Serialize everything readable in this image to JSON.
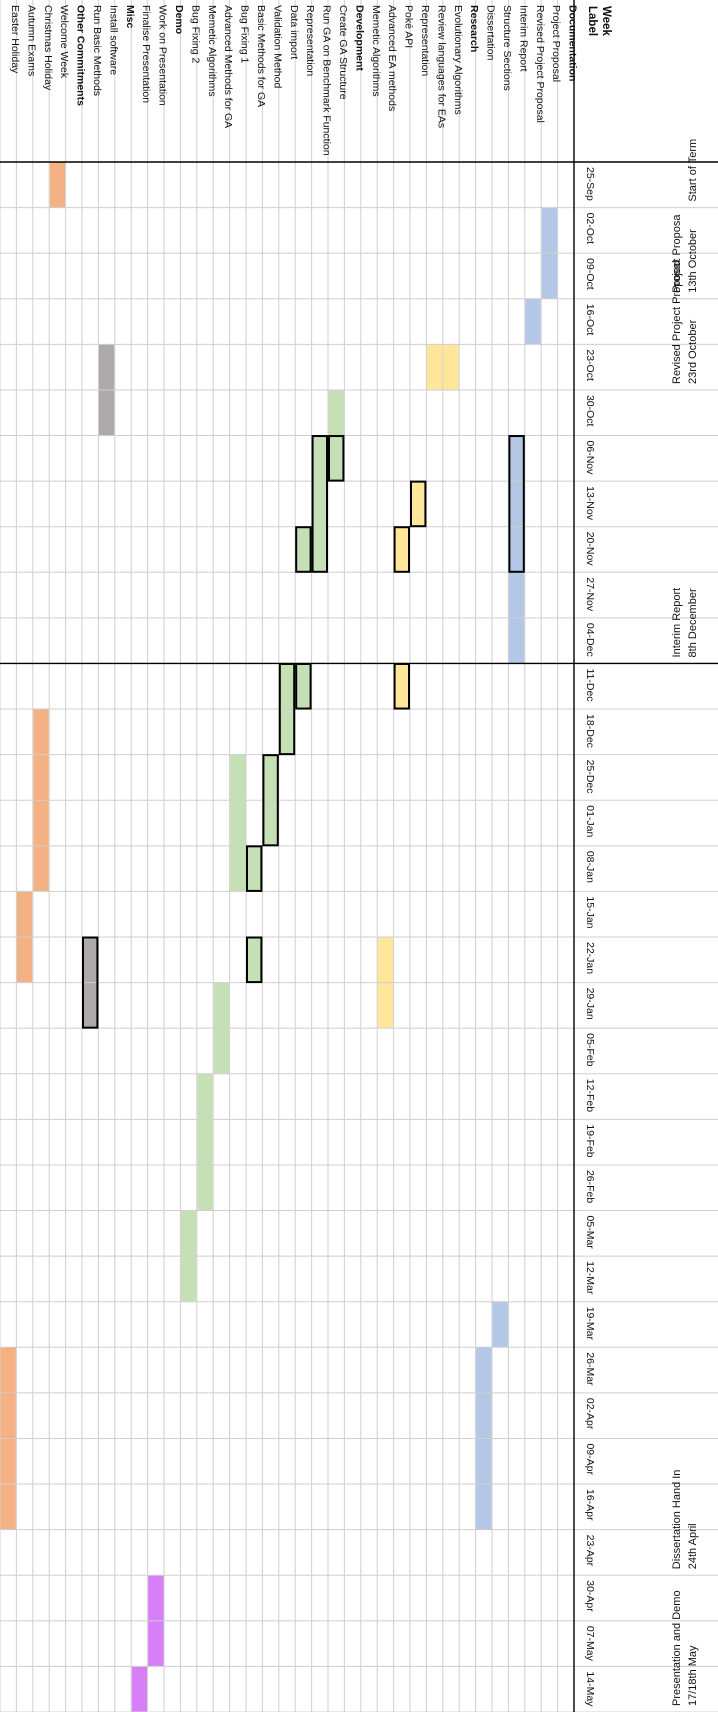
{
  "chart_data": {
    "type": "table",
    "orientation": "rotated-90-clockwise",
    "label_header": "Label",
    "week_header": "Week",
    "weeks": [
      "25-Sep",
      "02-Oct",
      "09-Oct",
      "16-Oct",
      "23-Oct",
      "30-Oct",
      "06-Nov",
      "13-Nov",
      "20-Nov",
      "27-Nov",
      "04-Dec",
      "11-Dec",
      "18-Dec",
      "25-Dec",
      "01-Jan",
      "08-Jan",
      "15-Jan",
      "22-Jan",
      "29-Jan",
      "05-Feb",
      "12-Feb",
      "19-Feb",
      "26-Feb",
      "05-Mar",
      "12-Mar",
      "19-Mar",
      "26-Mar",
      "02-Apr",
      "09-Apr",
      "16-Apr",
      "23-Apr",
      "30-Apr",
      "07-May",
      "14-May"
    ],
    "rows": [
      {
        "label": "Documentation",
        "bold": true
      },
      {
        "label": "Project Proposal"
      },
      {
        "label": "Revised Project Proposal"
      },
      {
        "label": "Interim Report"
      },
      {
        "label": "Structure Sections"
      },
      {
        "label": "Dissertation"
      },
      {
        "label": "Research",
        "bold": true
      },
      {
        "label": "Evolutionary Algorithms"
      },
      {
        "label": "Review languages for EAs"
      },
      {
        "label": "Representation"
      },
      {
        "label": "Poké API"
      },
      {
        "label": "Advanced EA methods"
      },
      {
        "label": "Memetic Algorithms"
      },
      {
        "label": "Development",
        "bold": true
      },
      {
        "label": "Create GA Structure"
      },
      {
        "label": "Run GA on Benchmark Function"
      },
      {
        "label": "Representation"
      },
      {
        "label": "Data import"
      },
      {
        "label": "Validation Method"
      },
      {
        "label": "Basic Methods for GA"
      },
      {
        "label": "Bug Fixing 1"
      },
      {
        "label": "Advanced Methods for GA"
      },
      {
        "label": "Memetic Algorithms"
      },
      {
        "label": "Bug Fixing 2"
      },
      {
        "label": "Demo",
        "bold": true
      },
      {
        "label": "Work on Presentation"
      },
      {
        "label": "Finalise Presentation"
      },
      {
        "label": "Misc",
        "bold": true
      },
      {
        "label": "Install software"
      },
      {
        "label": "Run Basic Methods"
      },
      {
        "label": "Other Commitments",
        "bold": true
      },
      {
        "label": "Welcome Week"
      },
      {
        "label": "Christmas Holiday"
      },
      {
        "label": "Autumn Exams"
      },
      {
        "label": "Easter Holiday"
      }
    ],
    "bars": [
      {
        "row": 1,
        "start": 1,
        "end": 2,
        "color": "blue"
      },
      {
        "row": 2,
        "start": 3,
        "end": 3,
        "color": "blue"
      },
      {
        "row": 3,
        "start": 6,
        "end": 10,
        "color": "blue"
      },
      {
        "row": 4,
        "start": 25,
        "end": 25,
        "color": "blue"
      },
      {
        "row": 5,
        "start": 26,
        "end": 29,
        "color": "blue"
      },
      {
        "row": 7,
        "start": 4,
        "end": 4,
        "color": "yellow"
      },
      {
        "row": 8,
        "start": 4,
        "end": 4,
        "color": "yellow"
      },
      {
        "row": 9,
        "start": 7,
        "end": 7,
        "color": "yellow"
      },
      {
        "row": 10,
        "start": 8,
        "end": 8,
        "color": "yellow"
      },
      {
        "row": 10,
        "start": 11,
        "end": 11,
        "color": "yellow"
      },
      {
        "row": 11,
        "start": 17,
        "end": 18,
        "color": "yellow"
      },
      {
        "row": 14,
        "start": 5,
        "end": 6,
        "color": "green"
      },
      {
        "row": 15,
        "start": 6,
        "end": 8,
        "color": "green"
      },
      {
        "row": 16,
        "start": 8,
        "end": 8,
        "color": "green"
      },
      {
        "row": 16,
        "start": 11,
        "end": 11,
        "color": "green"
      },
      {
        "row": 17,
        "start": 11,
        "end": 12,
        "color": "green"
      },
      {
        "row": 18,
        "start": 13,
        "end": 14,
        "color": "green"
      },
      {
        "row": 19,
        "start": 15,
        "end": 15,
        "color": "green"
      },
      {
        "row": 19,
        "start": 17,
        "end": 17,
        "color": "green"
      },
      {
        "row": 20,
        "start": 13,
        "end": 15,
        "color": "green"
      },
      {
        "row": 21,
        "start": 18,
        "end": 19,
        "color": "green"
      },
      {
        "row": 22,
        "start": 20,
        "end": 22,
        "color": "green"
      },
      {
        "row": 23,
        "start": 23,
        "end": 24,
        "color": "green"
      },
      {
        "row": 25,
        "start": 31,
        "end": 32,
        "color": "purple"
      },
      {
        "row": 26,
        "start": 33,
        "end": 33,
        "color": "purple"
      },
      {
        "row": 28,
        "start": 4,
        "end": 5,
        "color": "gray"
      },
      {
        "row": 29,
        "start": 17,
        "end": 18,
        "color": "gray"
      },
      {
        "row": 31,
        "start": 0,
        "end": 0,
        "color": "orange"
      },
      {
        "row": 32,
        "start": 12,
        "end": 15,
        "color": "orange"
      },
      {
        "row": 33,
        "start": 16,
        "end": 17,
        "color": "orange"
      },
      {
        "row": 34,
        "start": 26,
        "end": 29,
        "color": "orange"
      }
    ],
    "outlines": [
      {
        "row": 3,
        "start": 6,
        "end": 8
      },
      {
        "row": 9,
        "start": 7,
        "end": 7
      },
      {
        "row": 10,
        "start": 8,
        "end": 8
      },
      {
        "row": 10,
        "start": 11,
        "end": 11
      },
      {
        "row": 14,
        "start": 6,
        "end": 6
      },
      {
        "row": 15,
        "start": 6,
        "end": 8
      },
      {
        "row": 16,
        "start": 8,
        "end": 8
      },
      {
        "row": 16,
        "start": 11,
        "end": 11
      },
      {
        "row": 17,
        "start": 11,
        "end": 12
      },
      {
        "row": 18,
        "start": 13,
        "end": 14
      },
      {
        "row": 19,
        "start": 15,
        "end": 15
      },
      {
        "row": 19,
        "start": 17,
        "end": 17
      },
      {
        "row": 29,
        "start": 17,
        "end": 18
      }
    ],
    "milestones": [
      {
        "week": 0,
        "lines": [
          "Start of Term"
        ]
      },
      {
        "week": 2,
        "lines": [
          "13th October",
          "Project Proposa"
        ]
      },
      {
        "week": 4,
        "lines": [
          "23rd October",
          "Revised Project Proposal"
        ]
      },
      {
        "week": 10,
        "lines": [
          "8th December",
          "Interim Report"
        ]
      },
      {
        "week": 30,
        "lines": [
          "24th April",
          "Dissertation Hand In"
        ]
      },
      {
        "week": 33,
        "lines": [
          "17/18th May",
          "Presentation and Demo"
        ]
      }
    ],
    "divider_after_week": 10,
    "colors": {
      "blue": "#b4c7e7",
      "yellow": "#ffe699",
      "green": "#c5e0b4",
      "gray": "#aeaaaa",
      "orange": "#f4b183",
      "purple": "#d67ff7",
      "grid": "#cfcfcf",
      "outline": "#000000"
    }
  }
}
